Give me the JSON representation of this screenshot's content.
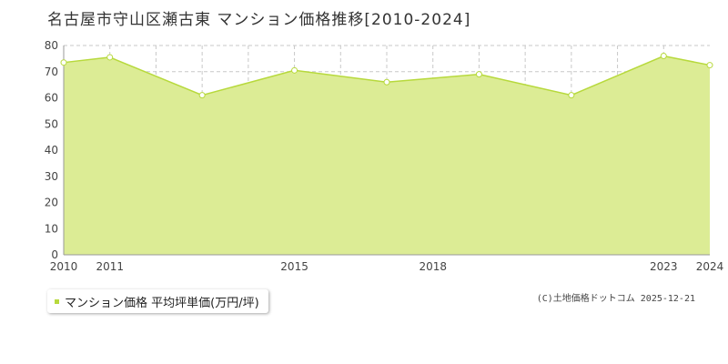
{
  "chart_data": {
    "type": "area",
    "title": "名古屋市守山区瀬古東 マンション価格推移[2010-2024]",
    "x": [
      2010,
      2011,
      2012,
      2013,
      2014,
      2015,
      2016,
      2017,
      2018,
      2019,
      2020,
      2021,
      2022,
      2023,
      2024
    ],
    "x_tick_labels": [
      "2010",
      "2011",
      "2015",
      "2018",
      "2023",
      "2024"
    ],
    "y_ticks": [
      0,
      10,
      20,
      30,
      40,
      50,
      60,
      70,
      80
    ],
    "ylim": [
      0,
      80
    ],
    "grid": true,
    "legend_position": "bottom-left",
    "series": [
      {
        "name": "マンション価格 平均坪単価(万円/坪)",
        "points": [
          {
            "x": 2010,
            "y": 73.5
          },
          {
            "x": 2011,
            "y": 75.5
          },
          {
            "x": 2013,
            "y": 61.0
          },
          {
            "x": 2015,
            "y": 70.5
          },
          {
            "x": 2017,
            "y": 66.0
          },
          {
            "x": 2019,
            "y": 69.0
          },
          {
            "x": 2021,
            "y": 61.0
          },
          {
            "x": 2023,
            "y": 76.0
          },
          {
            "x": 2024,
            "y": 72.5
          }
        ]
      }
    ],
    "colors": {
      "fill": "#dcec95",
      "line": "#b7d93c",
      "marker_fill": "#ffffff",
      "grid": "#c8c8c8",
      "axis": "#999999",
      "legend_marker": "#b7d93c"
    }
  },
  "footer": {
    "copyright": "(C)土地価格ドットコム 2025-12-21"
  }
}
